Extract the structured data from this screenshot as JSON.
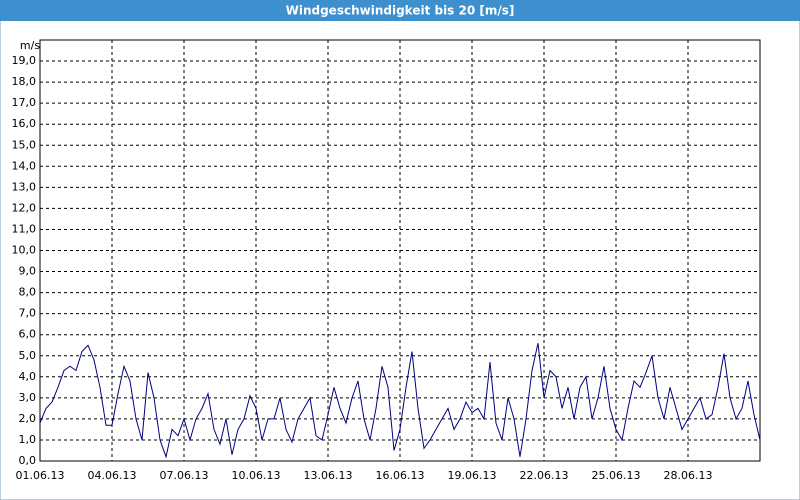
{
  "chart_data": {
    "type": "line",
    "title": "Windgeschwindigkeit bis 20 [m/s]",
    "y_unit": "m/s",
    "color": "#000080",
    "grid": true,
    "xlim": [
      0,
      30
    ],
    "ylim": [
      0,
      20
    ],
    "xticks": [
      {
        "value": 0,
        "label": "01.06.13"
      },
      {
        "value": 3,
        "label": "04.06.13"
      },
      {
        "value": 6,
        "label": "07.06.13"
      },
      {
        "value": 9,
        "label": "10.06.13"
      },
      {
        "value": 12,
        "label": "13.06.13"
      },
      {
        "value": 15,
        "label": "16.06.13"
      },
      {
        "value": 18,
        "label": "19.06.13"
      },
      {
        "value": 21,
        "label": "22.06.13"
      },
      {
        "value": 24,
        "label": "25.06.13"
      },
      {
        "value": 27,
        "label": "28.06.13"
      }
    ],
    "yticks": [
      {
        "value": 0,
        "label": "0,0"
      },
      {
        "value": 1,
        "label": "1,0"
      },
      {
        "value": 2,
        "label": "2,0"
      },
      {
        "value": 3,
        "label": "3,0"
      },
      {
        "value": 4,
        "label": "4,0"
      },
      {
        "value": 5,
        "label": "5,0"
      },
      {
        "value": 6,
        "label": "6,0"
      },
      {
        "value": 7,
        "label": "7,0"
      },
      {
        "value": 8,
        "label": "8,0"
      },
      {
        "value": 9,
        "label": "9,0"
      },
      {
        "value": 10,
        "label": "10,0"
      },
      {
        "value": 11,
        "label": "11,0"
      },
      {
        "value": 12,
        "label": "12,0"
      },
      {
        "value": 13,
        "label": "13,0"
      },
      {
        "value": 14,
        "label": "14,0"
      },
      {
        "value": 15,
        "label": "15,0"
      },
      {
        "value": 16,
        "label": "16,0"
      },
      {
        "value": 17,
        "label": "17,0"
      },
      {
        "value": 18,
        "label": "18,0"
      },
      {
        "value": 19,
        "label": "19,0"
      }
    ],
    "x": [
      0,
      0.25,
      0.5,
      0.75,
      1,
      1.25,
      1.5,
      1.75,
      2,
      2.25,
      2.5,
      2.75,
      3,
      3.25,
      3.5,
      3.75,
      4,
      4.25,
      4.5,
      4.75,
      5,
      5.25,
      5.5,
      5.75,
      6,
      6.25,
      6.5,
      6.75,
      7,
      7.25,
      7.5,
      7.75,
      8,
      8.25,
      8.5,
      8.75,
      9,
      9.25,
      9.5,
      9.75,
      10,
      10.25,
      10.5,
      10.75,
      11,
      11.25,
      11.5,
      11.75,
      12,
      12.25,
      12.5,
      12.75,
      13,
      13.25,
      13.5,
      13.75,
      14,
      14.25,
      14.5,
      14.75,
      15,
      15.25,
      15.5,
      15.75,
      16,
      16.25,
      16.5,
      16.75,
      17,
      17.25,
      17.5,
      17.75,
      18,
      18.25,
      18.5,
      18.75,
      19,
      19.25,
      19.5,
      19.75,
      20,
      20.25,
      20.5,
      20.75,
      21,
      21.25,
      21.5,
      21.75,
      22,
      22.25,
      22.5,
      22.75,
      23,
      23.25,
      23.5,
      23.75,
      24,
      24.25,
      24.5,
      24.75,
      25,
      25.25,
      25.5,
      25.75,
      26,
      26.25,
      26.5,
      26.75,
      27,
      27.25,
      27.5,
      27.75,
      28,
      28.25,
      28.5,
      28.75,
      29,
      29.25,
      29.5,
      29.75,
      30
    ],
    "values": [
      1.8,
      2.5,
      2.8,
      3.5,
      4.3,
      4.5,
      4.3,
      5.2,
      5.5,
      4.8,
      3.5,
      1.7,
      1.7,
      3.2,
      4.5,
      3.8,
      2.0,
      1.0,
      4.2,
      3.0,
      1.0,
      0.2,
      1.5,
      1.2,
      2.0,
      1.0,
      2.0,
      2.5,
      3.2,
      1.5,
      0.8,
      2.0,
      0.3,
      1.5,
      2.0,
      3.1,
      2.5,
      1.0,
      2.0,
      2.0,
      3.0,
      1.5,
      0.9,
      2.0,
      2.5,
      3.0,
      1.2,
      1.0,
      2.2,
      3.5,
      2.5,
      1.8,
      3.0,
      3.8,
      2.0,
      1.0,
      2.5,
      4.5,
      3.5,
      0.5,
      1.5,
      3.5,
      5.2,
      2.5,
      0.6,
      1.0,
      1.5,
      2.0,
      2.5,
      1.5,
      2.0,
      2.8,
      2.3,
      2.5,
      2.0,
      4.7,
      1.8,
      1.0,
      3.0,
      2.0,
      0.2,
      2.0,
      4.3,
      5.6,
      3.0,
      4.3,
      4.0,
      2.5,
      3.5,
      2.0,
      3.5,
      4.0,
      2.0,
      3.0,
      4.5,
      2.5,
      1.5,
      1.0,
      2.5,
      3.8,
      3.5,
      4.2,
      5.0,
      3.0,
      2.0,
      3.5,
      2.5,
      1.5,
      2.0,
      2.5,
      3.0,
      2.0,
      2.2,
      3.5,
      5.1,
      3.0,
      2.0,
      2.5,
      3.8,
      2.2,
      1.0
    ]
  }
}
